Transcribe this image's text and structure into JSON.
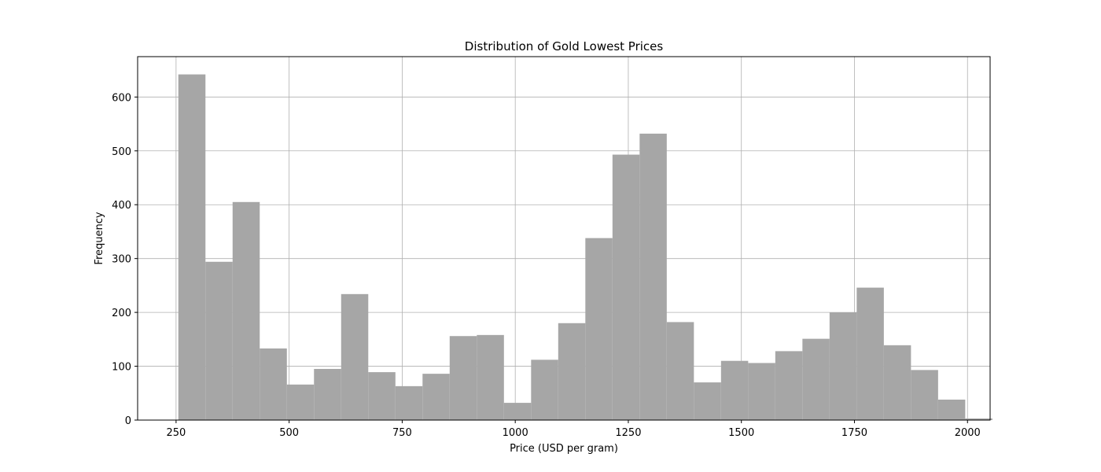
{
  "chart_data": {
    "type": "bar",
    "title": "Distribution of Gold Lowest Prices",
    "xlabel": "Price (USD per gram)",
    "ylabel": "Frequency",
    "xlim": [
      165,
      2050
    ],
    "ylim": [
      0,
      675
    ],
    "xticks": [
      250,
      500,
      750,
      1000,
      1250,
      1500,
      1750,
      2000
    ],
    "yticks": [
      0,
      100,
      200,
      300,
      400,
      500,
      600
    ],
    "grid": true,
    "bar_color": "#a6a6a6",
    "bins": [
      {
        "x0": 255,
        "x1": 315,
        "count": 642
      },
      {
        "x0": 315,
        "x1": 375,
        "count": 294
      },
      {
        "x0": 375,
        "x1": 435,
        "count": 405
      },
      {
        "x0": 435,
        "x1": 495,
        "count": 133
      },
      {
        "x0": 495,
        "x1": 555,
        "count": 66
      },
      {
        "x0": 555,
        "x1": 615,
        "count": 95
      },
      {
        "x0": 615,
        "x1": 675,
        "count": 234
      },
      {
        "x0": 675,
        "x1": 735,
        "count": 89
      },
      {
        "x0": 735,
        "x1": 795,
        "count": 63
      },
      {
        "x0": 795,
        "x1": 855,
        "count": 86
      },
      {
        "x0": 855,
        "x1": 915,
        "count": 156
      },
      {
        "x0": 915,
        "x1": 975,
        "count": 158
      },
      {
        "x0": 975,
        "x1": 1035,
        "count": 32
      },
      {
        "x0": 1035,
        "x1": 1095,
        "count": 112
      },
      {
        "x0": 1095,
        "x1": 1155,
        "count": 180
      },
      {
        "x0": 1155,
        "x1": 1215,
        "count": 338
      },
      {
        "x0": 1215,
        "x1": 1275,
        "count": 493
      },
      {
        "x0": 1275,
        "x1": 1335,
        "count": 532
      },
      {
        "x0": 1335,
        "x1": 1395,
        "count": 182
      },
      {
        "x0": 1395,
        "x1": 1455,
        "count": 70
      },
      {
        "x0": 1455,
        "x1": 1515,
        "count": 110
      },
      {
        "x0": 1515,
        "x1": 1575,
        "count": 106
      },
      {
        "x0": 1575,
        "x1": 1635,
        "count": 128
      },
      {
        "x0": 1635,
        "x1": 1695,
        "count": 151
      },
      {
        "x0": 1695,
        "x1": 1755,
        "count": 200
      },
      {
        "x0": 1755,
        "x1": 1815,
        "count": 246
      },
      {
        "x0": 1815,
        "x1": 1875,
        "count": 139
      },
      {
        "x0": 1875,
        "x1": 1935,
        "count": 93
      },
      {
        "x0": 1935,
        "x1": 1995,
        "count": 38
      },
      {
        "x0": 1995,
        "x1": 2055,
        "count": 3
      }
    ]
  }
}
